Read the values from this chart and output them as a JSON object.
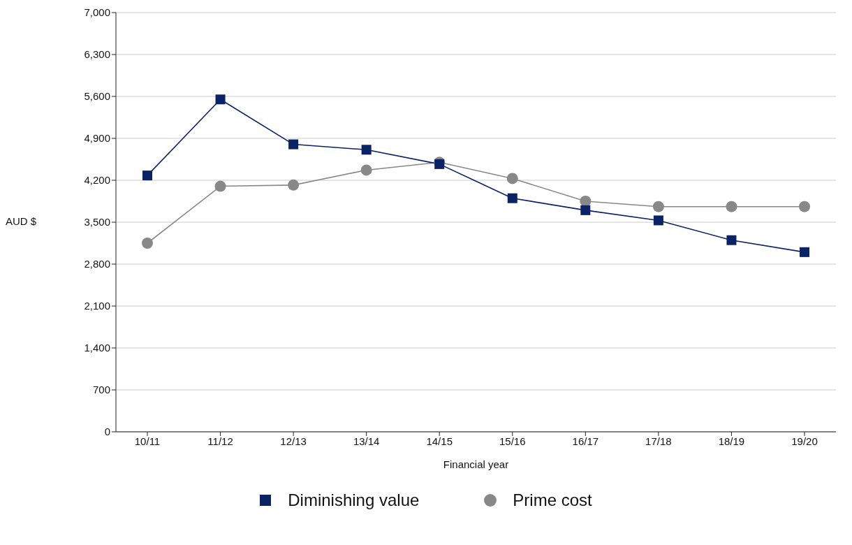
{
  "chart_data": {
    "type": "line",
    "xlabel": "Financial year",
    "ylabel": "AUD $",
    "categories": [
      "10/11",
      "11/12",
      "12/13",
      "13/14",
      "14/15",
      "15/16",
      "16/17",
      "17/18",
      "18/19",
      "19/20"
    ],
    "series": [
      {
        "name": "Diminishing value",
        "color": "#0a2266",
        "marker": "square",
        "values": [
          4280,
          5550,
          4800,
          4710,
          4470,
          3900,
          3700,
          3530,
          3200,
          3000
        ]
      },
      {
        "name": "Prime cost",
        "color": "#888888",
        "marker": "circle",
        "values": [
          3150,
          4100,
          4120,
          4370,
          4500,
          4230,
          3850,
          3760,
          3760,
          3760
        ]
      }
    ],
    "ylim": [
      0,
      7000
    ],
    "yticks": [
      0,
      700,
      {
        "value": 1400,
        "label": "1,400"
      },
      {
        "value": 2100,
        "label": "2,100"
      },
      {
        "value": 2800,
        "label": "2,800"
      },
      {
        "value": 3500,
        "label": "3,500"
      },
      {
        "value": 4200,
        "label": "4,200"
      },
      {
        "value": 4900,
        "label": "4,900"
      },
      {
        "value": 5600,
        "label": "5,600"
      },
      {
        "value": 6300,
        "label": "6,300"
      },
      {
        "value": 7000,
        "label": "7,000"
      }
    ],
    "grid": "y",
    "legend": "bottom",
    "line_style": "solid"
  }
}
